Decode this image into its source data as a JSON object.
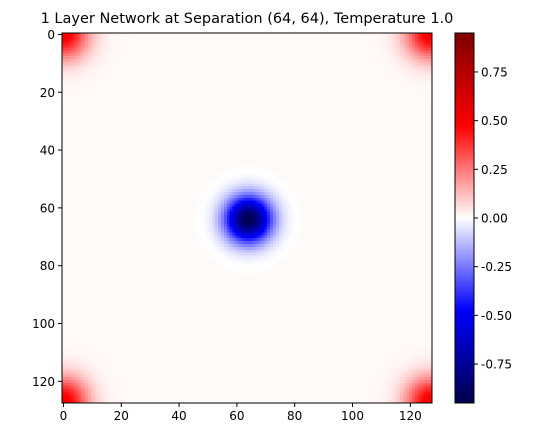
{
  "chart_data": {
    "type": "heatmap",
    "title": "1 Layer Network at Separation (64, 64), Temperature 1.0",
    "xlabel": "",
    "ylabel": "",
    "grid_size": 128,
    "x_ticks": [
      "0",
      "20",
      "40",
      "60",
      "80",
      "100",
      "120"
    ],
    "y_ticks": [
      "0",
      "20",
      "40",
      "60",
      "80",
      "100",
      "120"
    ],
    "xlim": [
      -0.5,
      127.5
    ],
    "ylim": [
      127.5,
      -0.5
    ],
    "colormap": "seismic",
    "colorbar": {
      "range": [
        -0.95,
        0.95
      ],
      "ticks": [
        "-0.75",
        "-0.50",
        "-0.25",
        "0.00",
        "0.25",
        "0.50",
        "0.75"
      ],
      "tick_values": [
        -0.75,
        -0.5,
        -0.25,
        0.0,
        0.25,
        0.5,
        0.75
      ]
    },
    "background_value": 0.01,
    "features": [
      {
        "name": "center negative peak",
        "x": 64,
        "y": 64,
        "peak": -0.95,
        "sigma": 5.5
      },
      {
        "name": "corner positive peak",
        "x": 0,
        "y": 0,
        "peak": 0.5,
        "sigma": 6
      },
      {
        "name": "corner positive peak",
        "x": 127,
        "y": 0,
        "peak": 0.5,
        "sigma": 6
      },
      {
        "name": "corner positive peak",
        "x": 0,
        "y": 127,
        "peak": 0.5,
        "sigma": 6
      },
      {
        "name": "corner positive peak",
        "x": 127,
        "y": 127,
        "peak": 0.5,
        "sigma": 6
      }
    ]
  }
}
